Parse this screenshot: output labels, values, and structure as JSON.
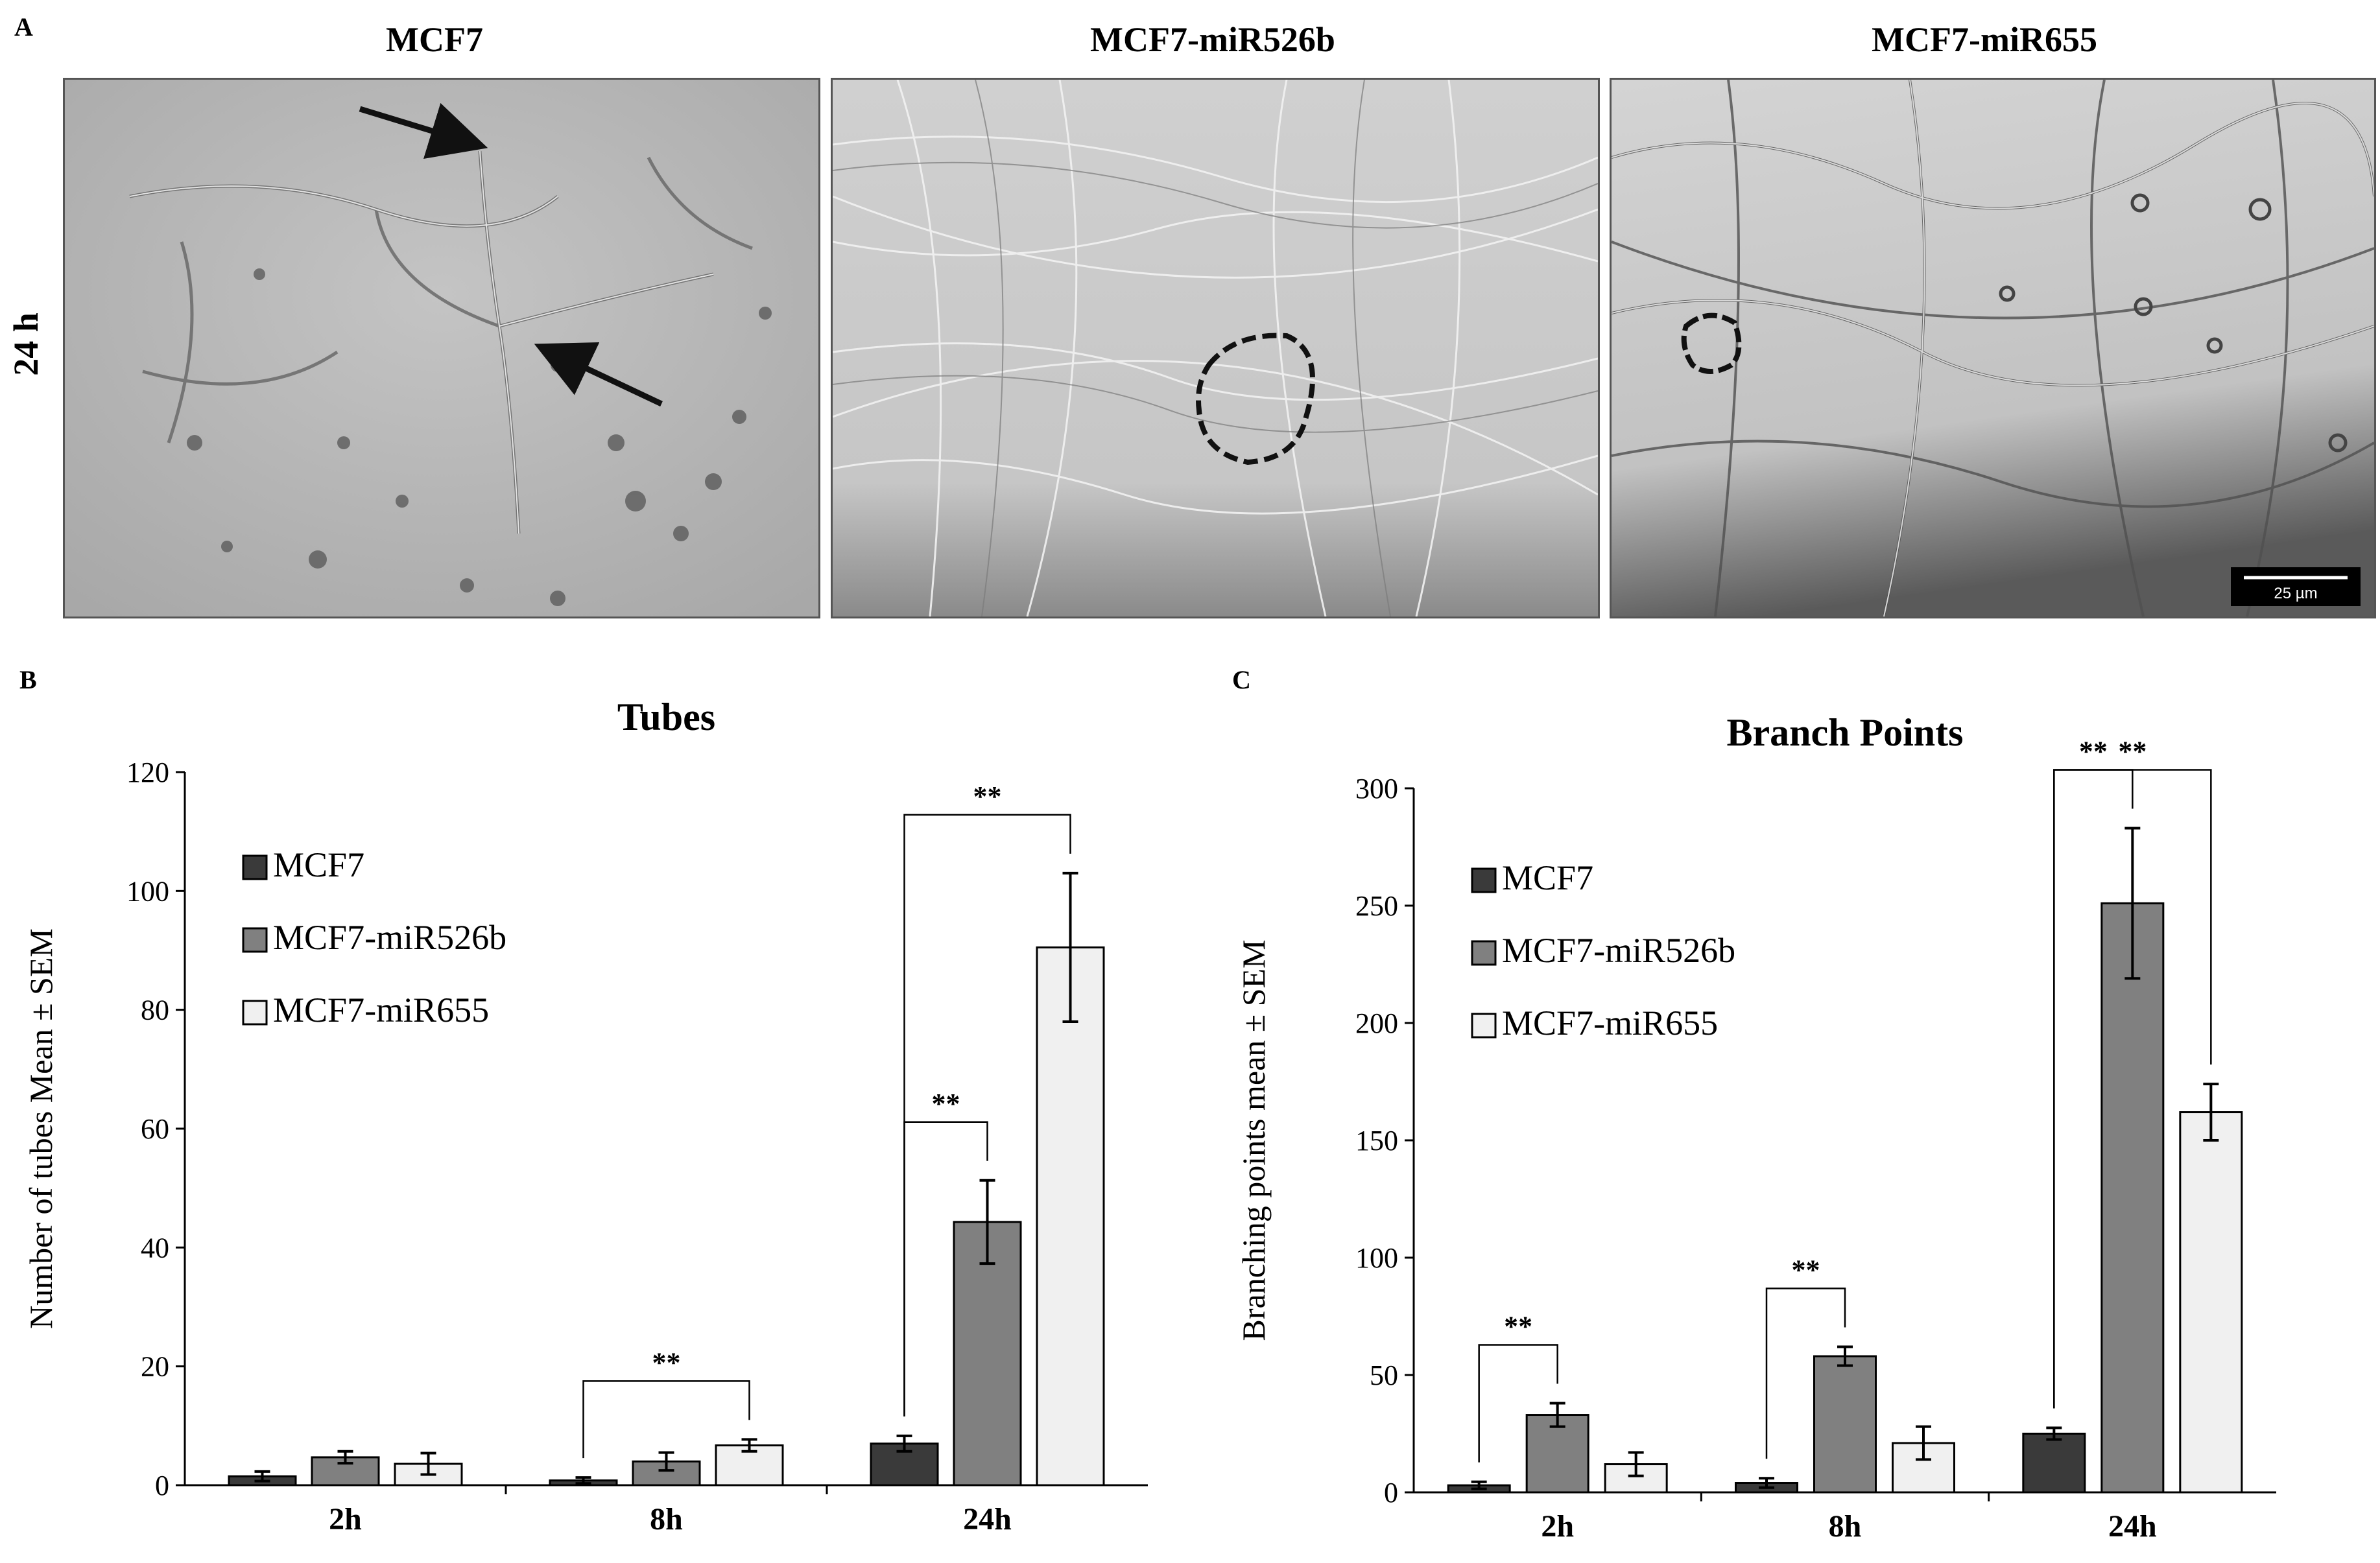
{
  "panels": {
    "a_letter": "A",
    "b_letter": "B",
    "c_letter": "C"
  },
  "micrographs": {
    "row_label": "24 h",
    "columns": [
      "MCF7",
      "MCF7-miR526b",
      "MCF7-miR655"
    ],
    "scale_bar": "25 µm"
  },
  "chart_data": [
    {
      "type": "bar",
      "title": "Tubes",
      "ylabel": "Number of tubes Mean ± SEM",
      "xlabel": "",
      "categories": [
        "2h",
        "8h",
        "24h"
      ],
      "ylim": [
        0,
        120
      ],
      "yticks": [
        0,
        20,
        40,
        60,
        80,
        100,
        120
      ],
      "legend_position": "top-left",
      "series": [
        {
          "name": "MCF7",
          "color": "#3a3a3a",
          "values": [
            1.5,
            0.8,
            7.0
          ],
          "errors": [
            0.8,
            0.5,
            1.3
          ]
        },
        {
          "name": "MCF7-miR526b",
          "color": "#808080",
          "values": [
            4.7,
            4.0,
            44.3
          ],
          "errors": [
            1.0,
            1.5,
            7.0
          ]
        },
        {
          "name": "MCF7-miR655",
          "color": "#f0f0f0",
          "values": [
            3.6,
            6.7,
            90.5
          ],
          "errors": [
            1.8,
            1.0,
            12.5
          ]
        }
      ],
      "significance": [
        {
          "label": "**",
          "category": "8h",
          "from": "MCF7",
          "to": "MCF7-miR655"
        },
        {
          "label": "**",
          "category": "24h",
          "from": "MCF7",
          "to": "MCF7-miR526b"
        },
        {
          "label": "**",
          "category": "24h",
          "from": "MCF7",
          "to": "MCF7-miR655"
        }
      ]
    },
    {
      "type": "bar",
      "title": "Branch Points",
      "ylabel": "Branching points mean ± SEM",
      "xlabel": "",
      "categories": [
        "2h",
        "8h",
        "24h"
      ],
      "ylim": [
        0,
        300
      ],
      "yticks": [
        0,
        50,
        100,
        150,
        200,
        250,
        300
      ],
      "legend_position": "top-left",
      "series": [
        {
          "name": "MCF7",
          "color": "#3a3a3a",
          "values": [
            3,
            4,
            25
          ],
          "errors": [
            1.5,
            2,
            2.5
          ]
        },
        {
          "name": "MCF7-miR526b",
          "color": "#808080",
          "values": [
            33,
            58,
            251
          ],
          "errors": [
            5,
            4,
            32
          ]
        },
        {
          "name": "MCF7-miR655",
          "color": "#f0f0f0",
          "values": [
            12,
            21,
            162
          ],
          "errors": [
            5,
            7,
            12
          ]
        }
      ],
      "significance": [
        {
          "label": "**",
          "category": "2h",
          "from": "MCF7",
          "to": "MCF7-miR526b"
        },
        {
          "label": "**",
          "category": "8h",
          "from": "MCF7",
          "to": "MCF7-miR526b"
        },
        {
          "label": "**",
          "category": "24h",
          "from": "MCF7",
          "to": "MCF7-miR526b"
        },
        {
          "label": "**",
          "category": "24h",
          "from": "MCF7",
          "to": "MCF7-miR655"
        }
      ]
    }
  ]
}
